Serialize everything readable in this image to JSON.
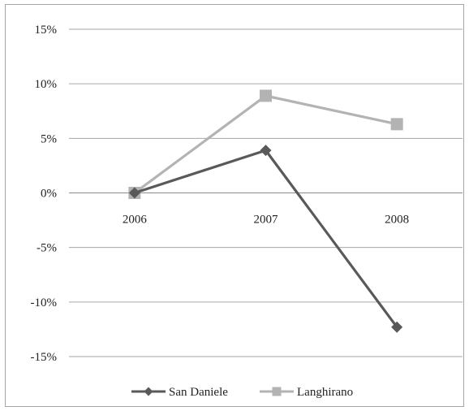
{
  "chart_data": {
    "type": "line",
    "categories": [
      "2006",
      "2007",
      "2008"
    ],
    "series": [
      {
        "name": "San Daniele",
        "values": [
          0.0,
          3.9,
          -12.3
        ],
        "color": "#595959",
        "marker": "diamond"
      },
      {
        "name": "Langhirano",
        "values": [
          0.0,
          8.9,
          6.3
        ],
        "color": "#b3b3b3",
        "marker": "square"
      }
    ],
    "y_ticks": [
      "15%",
      "10%",
      "5%",
      "0%",
      "-5%",
      "-10%",
      "-15%"
    ],
    "y_tick_values": [
      15,
      10,
      5,
      0,
      -5,
      -10,
      -15
    ],
    "ylim": [
      -15,
      15
    ],
    "grid": true,
    "legend_position": "bottom",
    "title": "",
    "xlabel": "",
    "ylabel": ""
  }
}
